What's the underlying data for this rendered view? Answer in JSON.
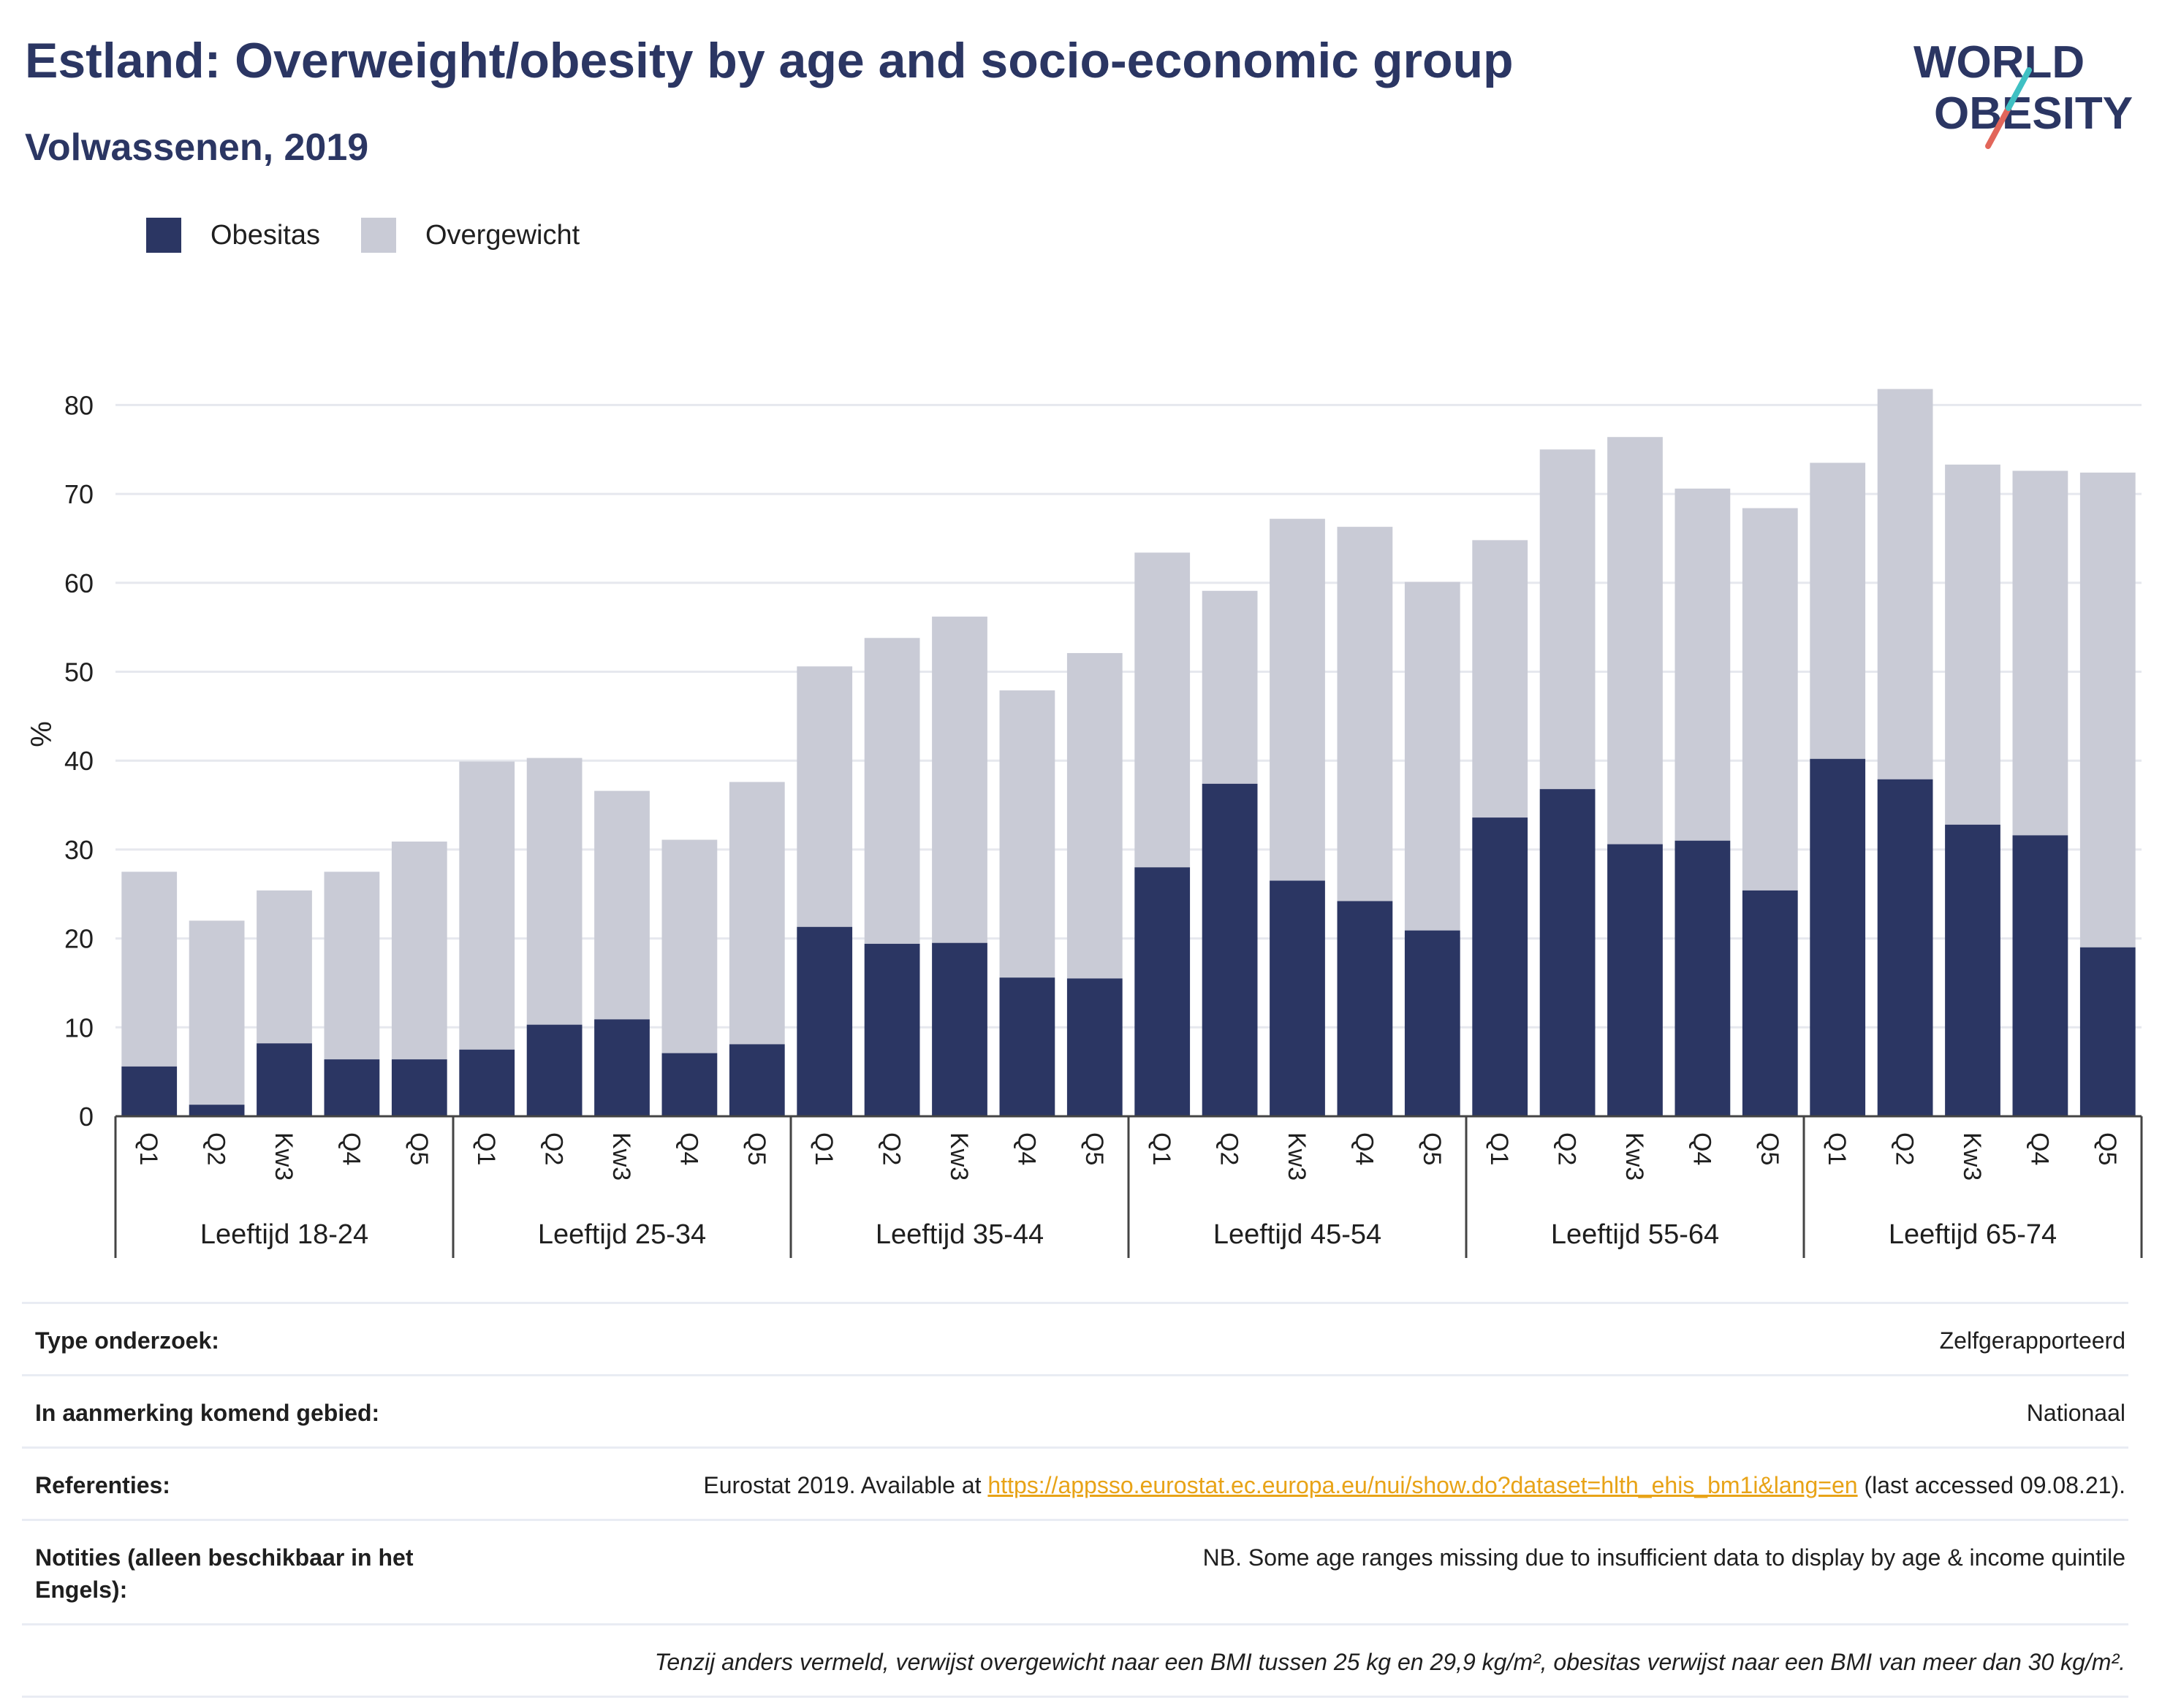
{
  "header": {
    "title": "Estland: Overweight/obesity by age and socio-economic group",
    "subtitle": "Volwassenen, 2019"
  },
  "logo": {
    "line1": "WORLD",
    "line2": "OBESITY",
    "colors": [
      "#2b3663",
      "#3fc0c3",
      "#e2665a"
    ]
  },
  "legend": [
    {
      "label": "Obesitas",
      "color": "#2b3663"
    },
    {
      "label": "Overgewicht",
      "color": "#c9cbd6"
    }
  ],
  "chart_data": {
    "type": "bar",
    "stacked": true,
    "ylabel": "%",
    "ylim": [
      0,
      85
    ],
    "yticks": [
      0,
      10,
      20,
      30,
      40,
      50,
      60,
      70,
      80
    ],
    "grid": true,
    "legend_position": "top-left",
    "groups": [
      {
        "label": "Leeftijd 18-24",
        "categories": [
          "Q1",
          "Q2",
          "Kw3",
          "Q4",
          "Q5"
        ],
        "obesitas": [
          5.6,
          1.3,
          8.2,
          6.4,
          6.4
        ],
        "totaal": [
          27.5,
          22.0,
          25.4,
          27.5,
          30.9
        ]
      },
      {
        "label": "Leeftijd 25-34",
        "categories": [
          "Q1",
          "Q2",
          "Kw3",
          "Q4",
          "Q5"
        ],
        "obesitas": [
          7.5,
          10.3,
          10.9,
          7.1,
          8.1
        ],
        "totaal": [
          39.9,
          40.3,
          36.6,
          31.1,
          37.6
        ]
      },
      {
        "label": "Leeftijd 35-44",
        "categories": [
          "Q1",
          "Q2",
          "Kw3",
          "Q4",
          "Q5"
        ],
        "obesitas": [
          21.3,
          19.4,
          19.5,
          15.6,
          15.5
        ],
        "totaal": [
          50.6,
          53.8,
          56.2,
          47.9,
          52.1
        ]
      },
      {
        "label": "Leeftijd 45-54",
        "categories": [
          "Q1",
          "Q2",
          "Kw3",
          "Q4",
          "Q5"
        ],
        "obesitas": [
          28.0,
          37.4,
          26.5,
          24.2,
          20.9
        ],
        "totaal": [
          63.4,
          59.1,
          67.2,
          66.3,
          60.1
        ]
      },
      {
        "label": "Leeftijd 55-64",
        "categories": [
          "Q1",
          "Q2",
          "Kw3",
          "Q4",
          "Q5"
        ],
        "obesitas": [
          33.6,
          36.8,
          30.6,
          31.0,
          25.4
        ],
        "totaal": [
          64.8,
          75.0,
          76.4,
          70.6,
          68.4
        ]
      },
      {
        "label": "Leeftijd 65-74",
        "categories": [
          "Q1",
          "Q2",
          "Kw3",
          "Q4",
          "Q5"
        ],
        "obesitas": [
          40.2,
          37.9,
          32.8,
          31.6,
          19.0
        ],
        "totaal": [
          73.5,
          81.8,
          73.3,
          72.6,
          72.4
        ]
      }
    ]
  },
  "info": {
    "rows": [
      {
        "key": "Type onderzoek:",
        "value": "Zelfgerapporteerd"
      },
      {
        "key": "In aanmerking komend gebied:",
        "value": "Nationaal"
      },
      {
        "key": "Referenties:",
        "value_prefix": "Eurostat 2019. Available at ",
        "link": "https://appsso.eurostat.ec.europa.eu/nui/show.do?dataset=hlth_ehis_bm1i&lang=en",
        "value_suffix": " (last accessed 09.08.21)."
      },
      {
        "key": "Notities (alleen beschikbaar in het Engels):",
        "value": "NB. Some age ranges missing due to insufficient data to display by age & income quintile"
      }
    ],
    "footnote": "Tenzij anders vermeld, verwijst overgewicht naar een BMI tussen 25 kg en 29,9 kg/m², obesitas verwijst naar een BMI van meer dan 30 kg/m²."
  }
}
